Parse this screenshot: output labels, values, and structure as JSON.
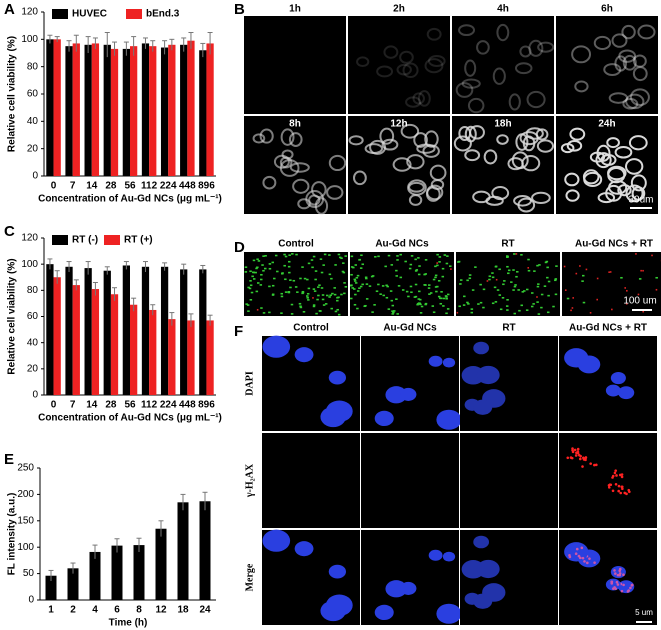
{
  "chart_data": [
    {
      "type": "bar",
      "categories": [
        "0",
        "7",
        "14",
        "28",
        "56",
        "112",
        "224",
        "448",
        "896"
      ],
      "series": [
        {
          "name": "HUVEC",
          "color": "#000000",
          "values": [
            100,
            95,
            96,
            96,
            93,
            97,
            94,
            96,
            92
          ],
          "errors": [
            3,
            4,
            6,
            9,
            5,
            4,
            5,
            5,
            5
          ]
        },
        {
          "name": "bEnd.3",
          "color": "#ee2222",
          "values": [
            100,
            97,
            97,
            93,
            95,
            95,
            96,
            99,
            97
          ],
          "errors": [
            2,
            6,
            4,
            5,
            7,
            4,
            4,
            6,
            8
          ]
        }
      ],
      "ylim": [
        0,
        120
      ],
      "yticks": [
        0,
        20,
        40,
        60,
        80,
        100,
        120
      ],
      "ylabel": "Relative cell viability (%)",
      "xlabel": "Concentration of Au-Gd NCs (μg mL⁻¹)"
    },
    {
      "type": "bar",
      "categories": [
        "0",
        "7",
        "14",
        "28",
        "56",
        "112",
        "224",
        "448",
        "896"
      ],
      "series": [
        {
          "name": "RT (-)",
          "color": "#000000",
          "values": [
            100,
            98,
            97,
            95,
            99,
            98,
            98,
            96,
            96
          ],
          "errors": [
            4,
            4,
            5,
            3,
            3,
            4,
            3,
            4,
            3
          ]
        },
        {
          "name": "RT (+)",
          "color": "#ee2222",
          "values": [
            90,
            84,
            81,
            77,
            69,
            65,
            58,
            57,
            57
          ],
          "errors": [
            5,
            4,
            5,
            5,
            5,
            4,
            5,
            5,
            4
          ]
        }
      ],
      "ylim": [
        0,
        120
      ],
      "yticks": [
        0,
        20,
        40,
        60,
        80,
        100,
        120
      ],
      "ylabel": "Relative cell viability (%)",
      "xlabel": "Concentration of Au-Gd NCs (μg mL⁻¹)"
    },
    {
      "type": "bar",
      "categories": [
        "1",
        "2",
        "4",
        "6",
        "8",
        "12",
        "18",
        "24"
      ],
      "values": [
        46,
        60,
        91,
        103,
        104,
        135,
        185,
        187
      ],
      "errors": [
        10,
        10,
        13,
        13,
        13,
        15,
        15,
        17
      ],
      "color": "#000000",
      "ylim": [
        0,
        250
      ],
      "yticks": [
        0,
        50,
        100,
        150,
        200,
        250
      ],
      "ylabel": "FL intensity (a.u.)",
      "xlabel": "Time (h)"
    }
  ],
  "figure": {
    "panel_labels": [
      "A",
      "B",
      "C",
      "D",
      "E",
      "F"
    ],
    "b_times": [
      "1h",
      "2h",
      "4h",
      "6h",
      "8h",
      "12h",
      "18h",
      "24h"
    ],
    "b_scale": "30um",
    "d_columns": [
      "Control",
      "Au-Gd NCs",
      "RT",
      "Au-Gd NCs + RT"
    ],
    "d_scale": "100 um",
    "f_columns": [
      "Control",
      "Au-Gd NCs",
      "RT",
      "Au-Gd NCs + RT"
    ],
    "f_rows": [
      "DAPI",
      "γ-H₂AX",
      "Merge"
    ],
    "f_scale": "5 um"
  }
}
